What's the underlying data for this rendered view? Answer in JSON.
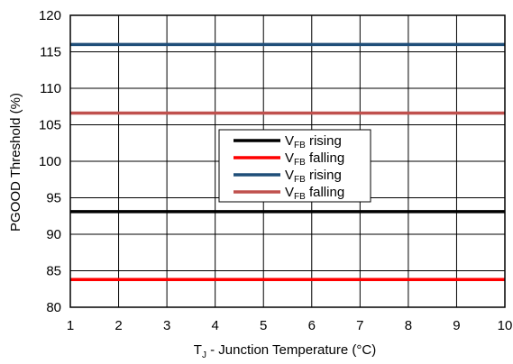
{
  "chart_data": {
    "type": "line",
    "xlabel": {
      "prefix": "T",
      "sub": "J",
      "rest": " - Junction Temperature (°C)"
    },
    "ylabel": "PGOOD Threshold (%)",
    "xlim": [
      1,
      10
    ],
    "ylim": [
      80,
      120
    ],
    "x_ticks": [
      1,
      2,
      3,
      4,
      5,
      6,
      7,
      8,
      9,
      10
    ],
    "y_ticks": [
      80,
      85,
      90,
      95,
      100,
      105,
      110,
      115,
      120
    ],
    "grid": true,
    "legend_position": "center",
    "series": [
      {
        "name_prefix": "V",
        "name_sub": "FB",
        "name_rest": " rising",
        "color": "#000000",
        "x": [
          1,
          10
        ],
        "y": [
          93.1,
          93.1
        ]
      },
      {
        "name_prefix": "V",
        "name_sub": "FB",
        "name_rest": " falling",
        "color": "#ff0000",
        "x": [
          1,
          10
        ],
        "y": [
          83.8,
          83.8
        ]
      },
      {
        "name_prefix": "V",
        "name_sub": "FB",
        "name_rest": " rising",
        "color": "#1f4e79",
        "x": [
          1,
          10
        ],
        "y": [
          116.0,
          116.0
        ]
      },
      {
        "name_prefix": "V",
        "name_sub": "FB",
        "name_rest": " falling",
        "color": "#c0504d",
        "x": [
          1,
          10
        ],
        "y": [
          106.6,
          106.6
        ]
      }
    ]
  }
}
